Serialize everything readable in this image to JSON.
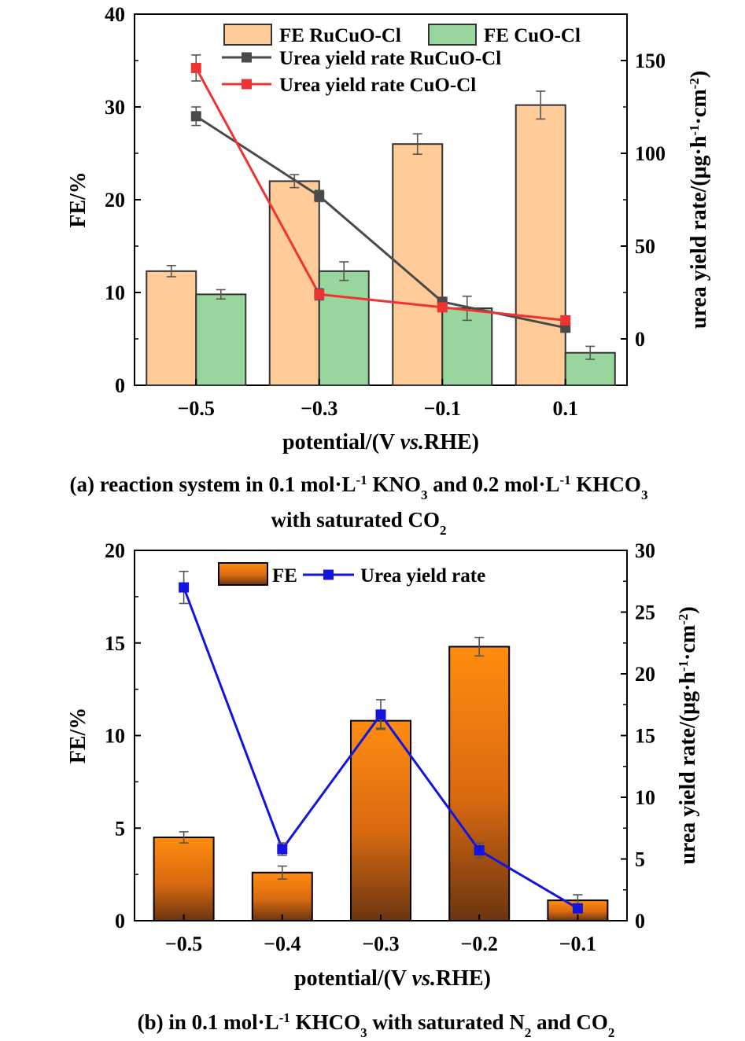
{
  "chart_data": [
    {
      "type": "bar",
      "panel": "a",
      "categories": [
        "−0.5",
        "−0.3",
        "−0.1",
        "0.1"
      ],
      "xlabel": "potential/(V vs.RHE)",
      "ylabel": "FE/%",
      "ylabel_right": "urea yield rate/(μg·h⁻¹·cm⁻²)",
      "ylim": [
        0,
        40
      ],
      "yticks": [
        "0",
        "10",
        "20",
        "30",
        "40"
      ],
      "ylim_right": [
        -25,
        175
      ],
      "yticks_right": [
        "0",
        "50",
        "100",
        "150"
      ],
      "series": [
        {
          "name": "FE RuCuO-Cl",
          "kind": "bar",
          "axis": "left",
          "color": "#ffcc99",
          "values": [
            12.3,
            22.0,
            26.0,
            30.2
          ],
          "errors": [
            0.6,
            0.7,
            1.1,
            1.5
          ]
        },
        {
          "name": "FE CuO-Cl",
          "kind": "bar",
          "axis": "left",
          "color": "#99d69e",
          "values": [
            9.8,
            12.3,
            8.3,
            3.5
          ],
          "errors": [
            0.5,
            1.0,
            1.3,
            0.7
          ]
        },
        {
          "name": "Urea yield rate RuCuO-Cl",
          "kind": "line",
          "axis": "right",
          "color": "#4a4a4a",
          "values": [
            120,
            77,
            20,
            6
          ],
          "errors": [
            5,
            3,
            2,
            2
          ]
        },
        {
          "name": "Urea yield rate CuO-Cl",
          "kind": "line",
          "axis": "right",
          "color": "#ee3333",
          "values": [
            146,
            24,
            17,
            10
          ],
          "errors": [
            7,
            3,
            2,
            2
          ]
        }
      ],
      "caption": {
        "parts": [
          {
            "t": "(a) reaction system in 0.1 mol·L"
          },
          {
            "t": "-1",
            "sup": true
          },
          {
            "t": " KNO"
          },
          {
            "t": "3",
            "sub": true
          },
          {
            "t": " and 0.2 mol·L"
          },
          {
            "t": "-1",
            "sup": true
          },
          {
            "t": " KHCO"
          },
          {
            "t": "3",
            "sub": true
          }
        ],
        "line2": [
          {
            "t": "with saturated CO"
          },
          {
            "t": "2",
            "sub": true
          }
        ]
      }
    },
    {
      "type": "bar",
      "panel": "b",
      "categories": [
        "−0.5",
        "−0.4",
        "−0.3",
        "−0.2",
        "−0.1"
      ],
      "xlabel": "potential/(V vs.RHE)",
      "ylabel": "FE/%",
      "ylabel_right": "urea yield rate/(μg·h⁻¹·cm⁻²)",
      "ylim": [
        0,
        20
      ],
      "yticks": [
        "0",
        "5",
        "10",
        "15",
        "20"
      ],
      "ylim_right": [
        0,
        30
      ],
      "yticks_right": [
        "0",
        "5",
        "10",
        "15",
        "20",
        "25",
        "30"
      ],
      "series": [
        {
          "name": "FE",
          "kind": "bar",
          "axis": "left",
          "color": "#ff8000",
          "values": [
            4.5,
            2.6,
            10.8,
            14.8,
            1.1
          ],
          "errors": [
            0.3,
            0.35,
            0.4,
            0.5,
            0.3
          ]
        },
        {
          "name": "Urea yield rate",
          "kind": "line",
          "axis": "right",
          "color": "#1414e0",
          "values": [
            27.0,
            5.8,
            16.7,
            5.7,
            1.0
          ],
          "errors": [
            1.3,
            0.5,
            1.2,
            0.6,
            0.2
          ]
        }
      ],
      "caption": {
        "parts": [
          {
            "t": "(b) in 0.1 mol·L"
          },
          {
            "t": "-1",
            "sup": true
          },
          {
            "t": " KHCO"
          },
          {
            "t": "3",
            "sub": true
          },
          {
            "t": " with saturated N"
          },
          {
            "t": "2",
            "sub": true
          },
          {
            "t": " and CO"
          },
          {
            "t": "2",
            "sub": true
          }
        ]
      }
    }
  ]
}
